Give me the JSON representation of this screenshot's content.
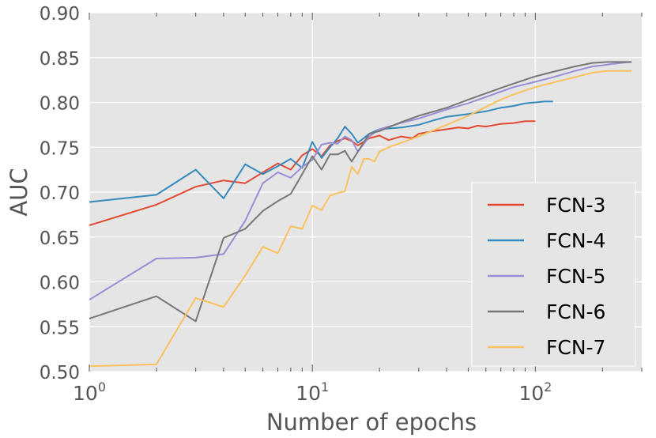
{
  "chart_data": {
    "type": "line",
    "xlabel": "Number of epochs",
    "ylabel": "AUC",
    "xscale": "log",
    "xlim": [
      1,
      300
    ],
    "ylim": [
      0.5,
      0.9
    ],
    "grid": true,
    "legend_position": "bottom-right",
    "x_ticks": [
      {
        "base": "10",
        "exp": "0"
      },
      {
        "base": "10",
        "exp": "1"
      },
      {
        "base": "10",
        "exp": "2"
      }
    ],
    "y_ticks": [
      "0.50",
      "0.55",
      "0.60",
      "0.65",
      "0.70",
      "0.75",
      "0.80",
      "0.85",
      "0.90"
    ],
    "series": [
      {
        "name": "FCN-3",
        "color": "#E24A33",
        "points": [
          [
            1,
            0.663
          ],
          [
            2,
            0.686
          ],
          [
            3,
            0.706
          ],
          [
            4,
            0.713
          ],
          [
            5,
            0.71
          ],
          [
            6,
            0.722
          ],
          [
            7,
            0.732
          ],
          [
            8,
            0.725
          ],
          [
            9,
            0.741
          ],
          [
            10,
            0.748
          ],
          [
            11,
            0.74
          ],
          [
            12,
            0.752
          ],
          [
            13,
            0.757
          ],
          [
            14,
            0.76
          ],
          [
            15,
            0.757
          ],
          [
            16,
            0.752
          ],
          [
            18,
            0.76
          ],
          [
            20,
            0.763
          ],
          [
            22,
            0.758
          ],
          [
            25,
            0.762
          ],
          [
            28,
            0.76
          ],
          [
            30,
            0.765
          ],
          [
            35,
            0.768
          ],
          [
            40,
            0.77
          ],
          [
            45,
            0.772
          ],
          [
            50,
            0.771
          ],
          [
            55,
            0.774
          ],
          [
            60,
            0.773
          ],
          [
            70,
            0.776
          ],
          [
            80,
            0.777
          ],
          [
            90,
            0.779
          ],
          [
            100,
            0.779
          ]
        ]
      },
      {
        "name": "FCN-4",
        "color": "#348ABD",
        "points": [
          [
            1,
            0.689
          ],
          [
            2,
            0.697
          ],
          [
            3,
            0.725
          ],
          [
            4,
            0.693
          ],
          [
            5,
            0.731
          ],
          [
            6,
            0.72
          ],
          [
            7,
            0.729
          ],
          [
            8,
            0.737
          ],
          [
            9,
            0.727
          ],
          [
            10,
            0.756
          ],
          [
            11,
            0.738
          ],
          [
            12,
            0.75
          ],
          [
            13,
            0.76
          ],
          [
            14,
            0.773
          ],
          [
            15,
            0.765
          ],
          [
            16,
            0.755
          ],
          [
            18,
            0.765
          ],
          [
            20,
            0.77
          ],
          [
            25,
            0.772
          ],
          [
            30,
            0.775
          ],
          [
            35,
            0.78
          ],
          [
            40,
            0.784
          ],
          [
            50,
            0.787
          ],
          [
            60,
            0.79
          ],
          [
            70,
            0.794
          ],
          [
            80,
            0.796
          ],
          [
            90,
            0.799
          ],
          [
            100,
            0.8
          ],
          [
            110,
            0.801
          ],
          [
            120,
            0.801
          ]
        ]
      },
      {
        "name": "FCN-5",
        "color": "#988ED5",
        "points": [
          [
            1,
            0.58
          ],
          [
            2,
            0.626
          ],
          [
            3,
            0.627
          ],
          [
            4,
            0.631
          ],
          [
            5,
            0.668
          ],
          [
            6,
            0.71
          ],
          [
            7,
            0.722
          ],
          [
            8,
            0.716
          ],
          [
            9,
            0.728
          ],
          [
            10,
            0.736
          ],
          [
            11,
            0.753
          ],
          [
            12,
            0.755
          ],
          [
            13,
            0.754
          ],
          [
            14,
            0.762
          ],
          [
            15,
            0.758
          ],
          [
            16,
            0.745
          ],
          [
            18,
            0.762
          ],
          [
            20,
            0.77
          ],
          [
            25,
            0.777
          ],
          [
            30,
            0.782
          ],
          [
            40,
            0.792
          ],
          [
            50,
            0.799
          ],
          [
            60,
            0.806
          ],
          [
            70,
            0.812
          ],
          [
            80,
            0.817
          ],
          [
            100,
            0.823
          ],
          [
            120,
            0.828
          ],
          [
            150,
            0.835
          ],
          [
            180,
            0.84
          ],
          [
            210,
            0.842
          ],
          [
            240,
            0.844
          ],
          [
            270,
            0.845
          ]
        ]
      },
      {
        "name": "FCN-6",
        "color": "#777777",
        "points": [
          [
            1,
            0.559
          ],
          [
            2,
            0.584
          ],
          [
            3,
            0.556
          ],
          [
            4,
            0.649
          ],
          [
            5,
            0.659
          ],
          [
            6,
            0.679
          ],
          [
            7,
            0.69
          ],
          [
            8,
            0.698
          ],
          [
            9,
            0.72
          ],
          [
            10,
            0.74
          ],
          [
            11,
            0.725
          ],
          [
            12,
            0.742
          ],
          [
            13,
            0.742
          ],
          [
            14,
            0.746
          ],
          [
            15,
            0.734
          ],
          [
            16,
            0.745
          ],
          [
            18,
            0.765
          ],
          [
            20,
            0.768
          ],
          [
            25,
            0.778
          ],
          [
            30,
            0.785
          ],
          [
            40,
            0.794
          ],
          [
            50,
            0.803
          ],
          [
            60,
            0.81
          ],
          [
            70,
            0.816
          ],
          [
            80,
            0.821
          ],
          [
            100,
            0.829
          ],
          [
            120,
            0.834
          ],
          [
            150,
            0.84
          ],
          [
            180,
            0.844
          ],
          [
            210,
            0.845
          ],
          [
            240,
            0.845
          ],
          [
            270,
            0.845
          ]
        ]
      },
      {
        "name": "FCN-7",
        "color": "#FBC15E",
        "points": [
          [
            1,
            0.506
          ],
          [
            2,
            0.508
          ],
          [
            3,
            0.582
          ],
          [
            4,
            0.572
          ],
          [
            5,
            0.607
          ],
          [
            6,
            0.639
          ],
          [
            7,
            0.632
          ],
          [
            8,
            0.662
          ],
          [
            9,
            0.659
          ],
          [
            10,
            0.685
          ],
          [
            11,
            0.68
          ],
          [
            12,
            0.696
          ],
          [
            13,
            0.699
          ],
          [
            14,
            0.701
          ],
          [
            15,
            0.728
          ],
          [
            16,
            0.72
          ],
          [
            17,
            0.737
          ],
          [
            18,
            0.737
          ],
          [
            19,
            0.734
          ],
          [
            20,
            0.745
          ],
          [
            22,
            0.75
          ],
          [
            25,
            0.755
          ],
          [
            30,
            0.762
          ],
          [
            40,
            0.775
          ],
          [
            50,
            0.785
          ],
          [
            60,
            0.795
          ],
          [
            70,
            0.803
          ],
          [
            80,
            0.809
          ],
          [
            100,
            0.817
          ],
          [
            120,
            0.822
          ],
          [
            150,
            0.828
          ],
          [
            180,
            0.833
          ],
          [
            210,
            0.835
          ],
          [
            240,
            0.835
          ],
          [
            270,
            0.835
          ]
        ]
      }
    ]
  }
}
